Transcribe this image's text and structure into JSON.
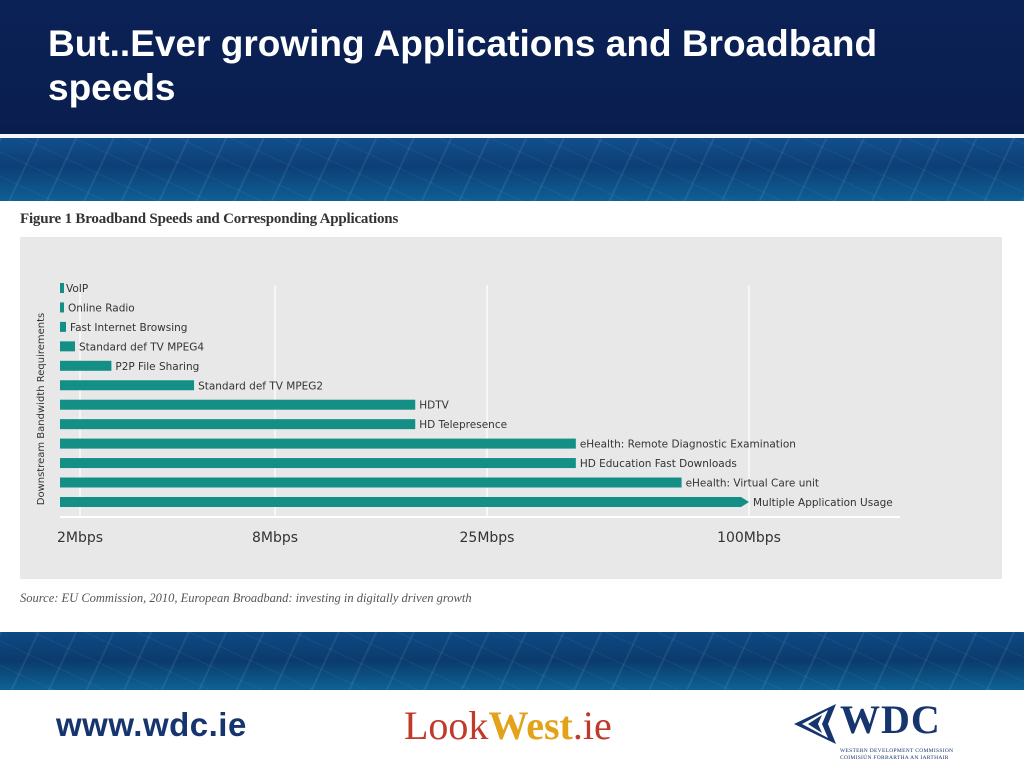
{
  "slide": {
    "title": "But..Ever growing Applications and Broadband speeds"
  },
  "figure": {
    "title": "Figure 1 Broadband Speeds and Corresponding Applications",
    "source": "Source: EU Commission, 2010, European Broadband: investing in digitally driven growth"
  },
  "chart_data": {
    "type": "bar",
    "orientation": "horizontal",
    "title": "Figure 1 Broadband Speeds and Corresponding Applications",
    "ylabel": "Downstream Bandwidth Requirements",
    "xlabel": "",
    "x_ticks": [
      "2Mbps",
      "8Mbps",
      "25Mbps",
      "100Mbps"
    ],
    "x_scale": "tick-spaced (nonlinear)",
    "grid": true,
    "bar_color": "#138f86",
    "categories": [
      "VoIP",
      "Online Radio",
      "Fast Internet Browsing",
      "Standard def TV MPEG4",
      "P2P File Sharing",
      "Standard def TV MPEG2",
      "HDTV",
      "HD Telepresence",
      "eHealth: Remote Diagnostic Examination",
      "HD Education Fast Downloads",
      "eHealth: Virtual Care unit",
      "Multiple Application Usage"
    ],
    "values_mbps": [
      0.2,
      0.4,
      0.6,
      1.5,
      2.5,
      4.5,
      17,
      17,
      40,
      40,
      70,
      100
    ]
  },
  "footer": {
    "url": "www.wdc.ie",
    "lookwest": {
      "look": "Look",
      "west": "West",
      "ie": ".ie"
    },
    "wdc": {
      "name": "WDC",
      "line1": "WESTERN DEVELOPMENT COMMISSION",
      "line2": "COIMISIÚN FORBARTHA AN IARTHAIR"
    }
  },
  "colors": {
    "header_bg": "#0b2257",
    "bar": "#138f86",
    "url": "#16346d"
  }
}
